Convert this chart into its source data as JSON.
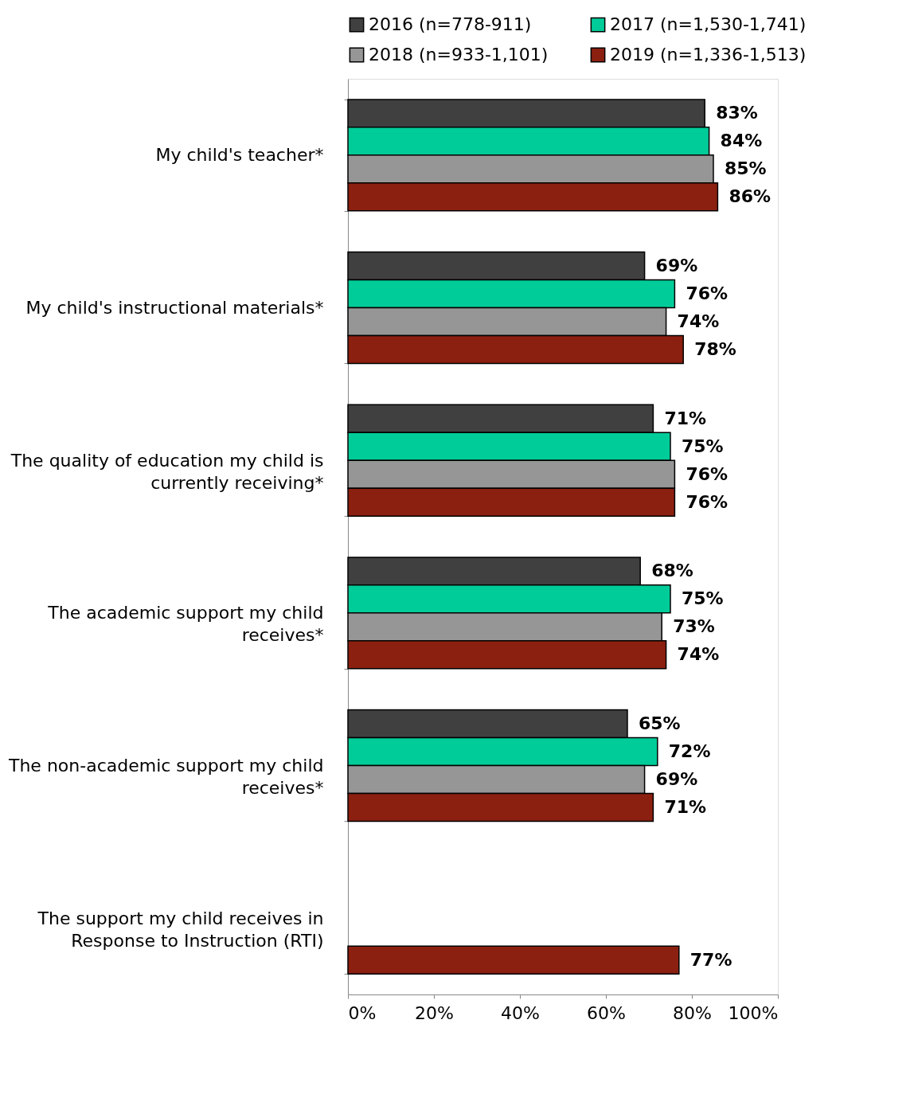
{
  "chart_data": {
    "type": "bar",
    "orientation": "horizontal",
    "categories": [
      "My child's teacher*",
      "My child's instructional materials*",
      "The quality of education my child is currently receiving*",
      "The academic support my child receives*",
      "The non-academic support my child receives*",
      "The support my child receives in Response to Instruction (RTI)"
    ],
    "series": [
      {
        "name": "2016 (n=778-911)",
        "color": "#404040",
        "values": [
          83,
          69,
          71,
          68,
          65,
          null
        ],
        "value_labels": [
          "83%",
          "69%",
          "71%",
          "68%",
          "65%",
          null
        ]
      },
      {
        "name": "2017 (n=1,530-1,741)",
        "color": "#00cc99",
        "values": [
          84,
          76,
          75,
          75,
          72,
          null
        ],
        "value_labels": [
          "84%",
          "76%",
          "75%",
          "75%",
          "72%",
          null
        ]
      },
      {
        "name": "2018 (n=933-1,101)",
        "color": "#969696",
        "values": [
          85,
          74,
          76,
          73,
          69,
          null
        ],
        "value_labels": [
          "85%",
          "74%",
          "76%",
          "73%",
          "69%",
          null
        ]
      },
      {
        "name": "2019 (n=1,336-1,513)",
        "color": "#8b2010",
        "values": [
          86,
          78,
          76,
          74,
          71,
          77
        ],
        "value_labels": [
          "86%",
          "78%",
          "76%",
          "74%",
          "71%",
          "77%"
        ]
      }
    ],
    "xlim": [
      0,
      100
    ],
    "xticks": [
      {
        "value": 0,
        "label": "0%"
      },
      {
        "value": 20,
        "label": "20%"
      },
      {
        "value": 40,
        "label": "40%"
      },
      {
        "value": 60,
        "label": "60%"
      },
      {
        "value": 80,
        "label": "80%"
      },
      {
        "value": 100,
        "label": "100%"
      }
    ],
    "grid": false,
    "legend": "top"
  }
}
